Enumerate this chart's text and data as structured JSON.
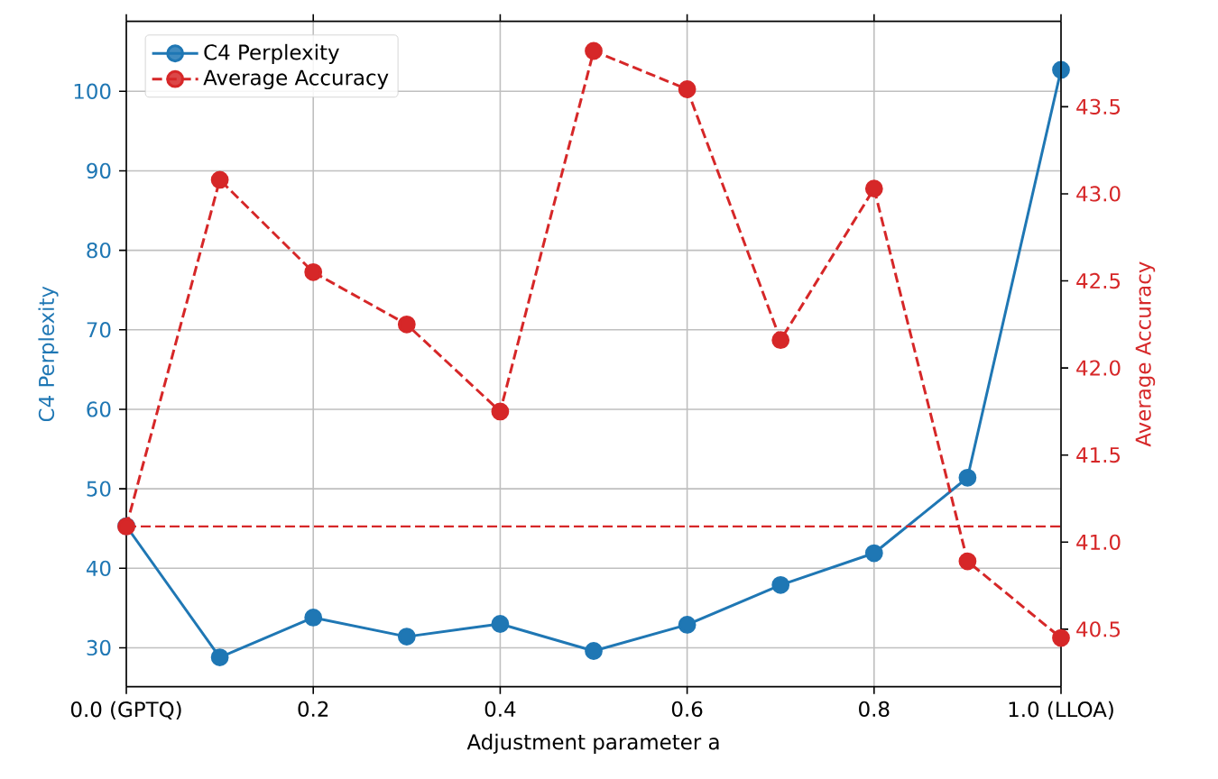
{
  "chart_data": {
    "type": "line",
    "xlabel": "Adjustment parameter a",
    "ylabel": "C4 Perplexity",
    "y2label": "Average Accuracy",
    "x": [
      0.0,
      0.1,
      0.2,
      0.3,
      0.4,
      0.5,
      0.6,
      0.7,
      0.8,
      0.9,
      1.0
    ],
    "series": [
      {
        "name": "C4 Perplexity",
        "color": "#1f77b4",
        "axis": "y",
        "line_style": "solid",
        "values": [
          45.3,
          28.8,
          33.8,
          31.4,
          33.0,
          29.6,
          32.9,
          37.9,
          41.9,
          51.4,
          102.7
        ]
      },
      {
        "name": "Average Accuracy",
        "color": "#d62728",
        "axis": "y2",
        "line_style": "dashed",
        "values": [
          41.09,
          43.08,
          42.55,
          42.25,
          41.75,
          43.82,
          43.6,
          42.16,
          43.03,
          40.89,
          40.45
        ]
      }
    ],
    "xlim": [
      0,
      1
    ],
    "xticks": [
      {
        "value": 0,
        "label": "0.0 (GPTQ)"
      },
      0.2,
      0.4,
      0.6,
      0.8,
      {
        "value": 1,
        "label": "1.0 (LLOA)"
      }
    ],
    "ylim": [
      25.1,
      108.8
    ],
    "yticks": [
      30,
      40,
      50,
      60,
      70,
      80,
      90,
      100
    ],
    "y2lim": [
      40.17,
      43.99
    ],
    "y2ticks": [
      40.5,
      {
        "value": 41,
        "label": "41.0"
      },
      41.5,
      {
        "value": 42,
        "label": "42.0"
      },
      42.5,
      {
        "value": 43,
        "label": "43.0"
      },
      43.5
    ],
    "ref_lines": [
      {
        "axis": "y2",
        "value": 41.09,
        "color": "#d62728",
        "line_style": "dashed"
      }
    ],
    "grid": true,
    "legend": "top left",
    "marker": "circle"
  }
}
